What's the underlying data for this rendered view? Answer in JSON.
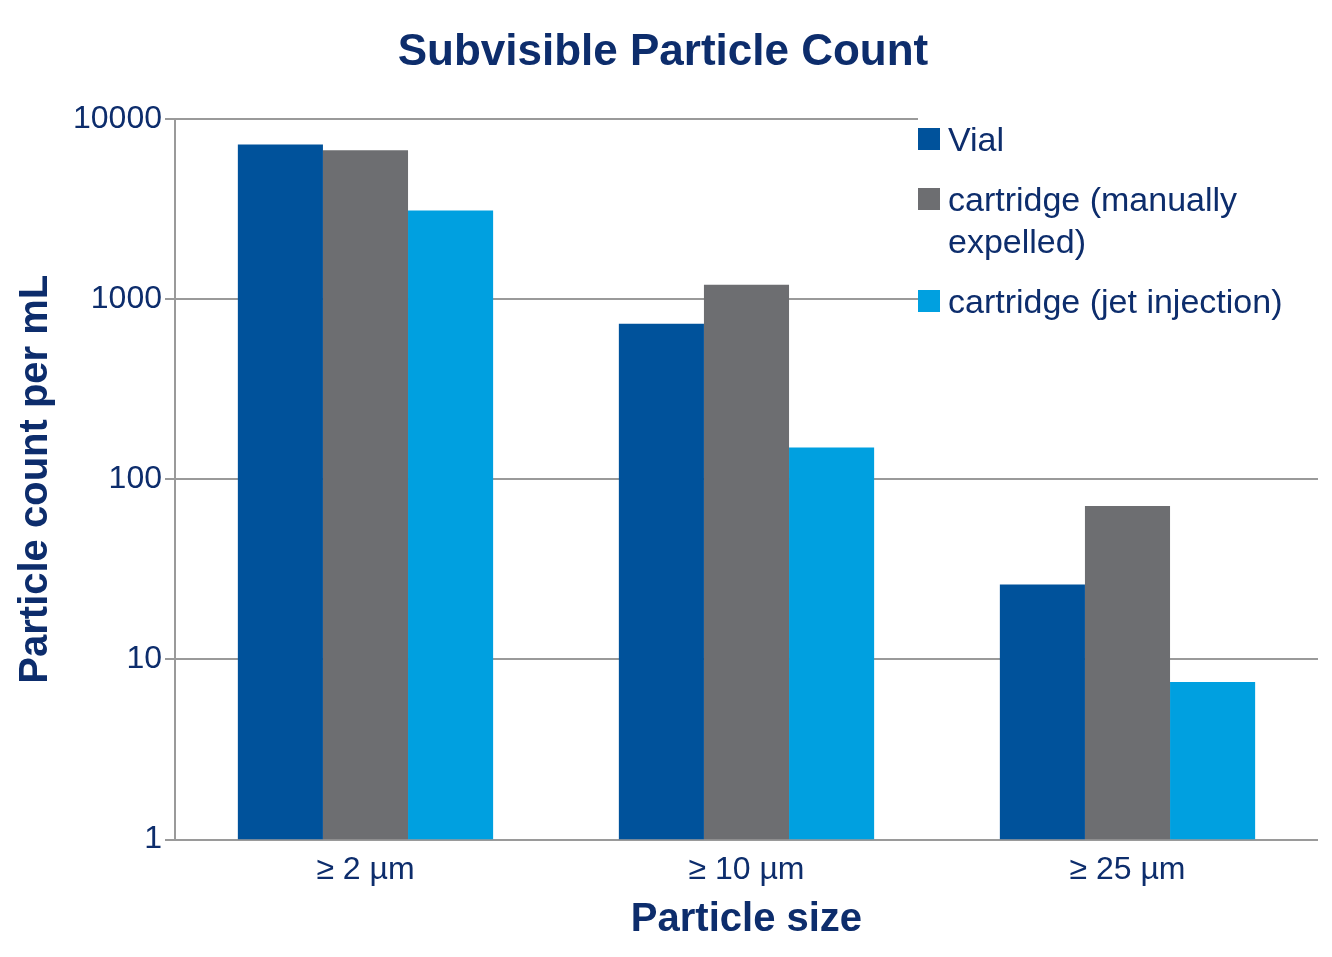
{
  "chart_data": {
    "type": "bar",
    "title": "Subvisible Particle Count",
    "xlabel": "Particle size",
    "ylabel": "Particle count per mL",
    "categories": [
      "≥ 2 µm",
      "≥ 10 µm",
      "≥ 25 µm"
    ],
    "series": [
      {
        "name": "Vial",
        "color": "#00529b",
        "values": [
          7200,
          730,
          26
        ]
      },
      {
        "name": "cartridge (manually expelled)",
        "color": "#6d6e71",
        "values": [
          6700,
          1200,
          71
        ]
      },
      {
        "name": "cartridge (jet injection)",
        "color": "#00a0e0",
        "values": [
          3100,
          150,
          7.5
        ]
      }
    ],
    "log": true,
    "ylim": [
      1,
      10000
    ],
    "yticks": [
      1,
      10,
      100,
      1000,
      10000
    ],
    "grid": "y",
    "legend": "top right"
  }
}
